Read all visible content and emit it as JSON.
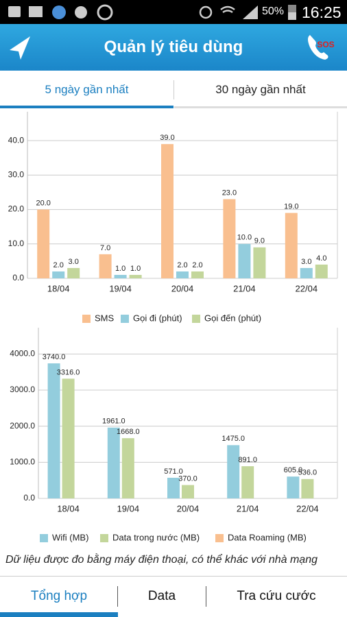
{
  "status_bar": {
    "battery": "50%",
    "time": "16:25"
  },
  "header": {
    "title": "Quản lý tiêu dùng",
    "sos": "SOS"
  },
  "tabs": [
    "5 ngày gần nhất",
    "30 ngày gần nhất"
  ],
  "chart_data": [
    {
      "type": "bar",
      "categories": [
        "18/04",
        "19/04",
        "20/04",
        "21/04",
        "22/04"
      ],
      "series": [
        {
          "name": "SMS",
          "color": "#f9bf8f",
          "values": [
            20,
            7,
            39,
            23,
            19
          ],
          "value_labels": [
            "20.0",
            "7.0",
            "39.0",
            "23.0",
            "19.0"
          ]
        },
        {
          "name": "Gọi đi (phút)",
          "color": "#93cddd",
          "values": [
            2,
            1,
            2,
            10,
            3
          ],
          "value_labels": [
            "2.0",
            "1.0",
            "2.0",
            "10.0",
            "3.0"
          ]
        },
        {
          "name": "Gọi đến (phút)",
          "color": "#c3d69b",
          "values": [
            3,
            1,
            2,
            9,
            4
          ],
          "value_labels": [
            "3.0",
            "1.0",
            "2.0",
            "9.0",
            "4.0"
          ]
        }
      ],
      "ylim": [
        0,
        46
      ],
      "yticks": [
        {
          "value": 0,
          "label": "0.0"
        },
        {
          "value": 10,
          "label": "10.0"
        },
        {
          "value": 20,
          "label": "20.0"
        },
        {
          "value": 30,
          "label": "30.0"
        },
        {
          "value": 40,
          "label": "40.0"
        }
      ],
      "grid": true,
      "legend": "bottom"
    },
    {
      "type": "bar",
      "categories": [
        "18/04",
        "19/04",
        "20/04",
        "21/04",
        "22/04"
      ],
      "series": [
        {
          "name": "Wifi (MB)",
          "color": "#93cddd",
          "values": [
            3740,
            1961,
            571,
            1475,
            605
          ],
          "value_labels": [
            "3740.0",
            "1961.0",
            "571.0",
            "1475.0",
            "605.0"
          ]
        },
        {
          "name": "Data trong nước (MB)",
          "color": "#c3d69b",
          "values": [
            3316,
            1668,
            370,
            891,
            536
          ],
          "value_labels": [
            "3316.0",
            "1668.0",
            "370.0",
            "891.0",
            "536.0"
          ]
        },
        {
          "name": "Data Roaming (MB)",
          "color": "#f9bf8f",
          "values": [
            null,
            null,
            null,
            null,
            null
          ]
        }
      ],
      "ylim": [
        0,
        4500
      ],
      "yticks": [
        {
          "value": 0,
          "label": "0.0"
        },
        {
          "value": 1000,
          "label": "1000.0"
        },
        {
          "value": 2000,
          "label": "2000.0"
        },
        {
          "value": 3000,
          "label": "3000.0"
        },
        {
          "value": 4000,
          "label": "4000.0"
        }
      ],
      "grid": true,
      "legend": "bottom"
    }
  ],
  "note": "Dữ liệu được đo bằng máy điện thoại, có thể khác với nhà mạng",
  "bottom_nav": [
    "Tổng hợp",
    "Data",
    "Tra cứu cước"
  ]
}
